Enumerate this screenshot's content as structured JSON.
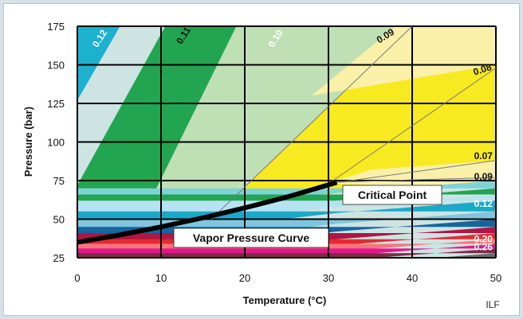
{
  "chart_data": {
    "type": "heatmap",
    "xlabel": "Temperature (°C)",
    "ylabel": "Pressure (bar)",
    "xlim": [
      0,
      50
    ],
    "ylim": [
      25,
      175
    ],
    "xticks": [
      "0",
      "10",
      "20",
      "30",
      "40",
      "50"
    ],
    "yticks": [
      "25",
      "50",
      "75",
      "100",
      "125",
      "150",
      "175"
    ],
    "grid": true,
    "density_labels_upper": [
      {
        "text": "0.12",
        "x": 3,
        "y": 166,
        "color": "#ffffff"
      },
      {
        "text": "0.11",
        "x": 13,
        "y": 168,
        "color": "#111111"
      },
      {
        "text": "0.10",
        "x": 24,
        "y": 166,
        "color": "#ffffff"
      },
      {
        "text": "0.09",
        "x": 37,
        "y": 167,
        "color": "#111111"
      },
      {
        "text": "0.08",
        "x": 48.5,
        "y": 145,
        "color": "#111111"
      },
      {
        "text": "0.07",
        "x": 48.5,
        "y": 89,
        "color": "#111111"
      },
      {
        "text": "0.09",
        "x": 48.5,
        "y": 75.5,
        "color": "#111111"
      }
    ],
    "density_labels_lower": [
      {
        "text": "0.12",
        "x": 48.5,
        "y": 58,
        "color": "#ffffff"
      },
      {
        "text": "0.20",
        "x": 48.5,
        "y": 35,
        "color": "#ffffff"
      },
      {
        "text": "0.26",
        "x": 48.5,
        "y": 30,
        "color": "#ffffff"
      }
    ],
    "vapor_pressure_curve": {
      "x": [
        0,
        5,
        10,
        15,
        20,
        25,
        31
      ],
      "y": [
        35,
        39.7,
        45,
        50.9,
        57.3,
        64.3,
        73.8
      ]
    },
    "annotations": [
      {
        "text": "Critical Point",
        "x": 31,
        "y": 73.8
      },
      {
        "text": "Vapor Pressure Curve",
        "x": 10,
        "y": 45
      }
    ],
    "credit": "ILF"
  },
  "colors": {
    "teal": "#1bb1cf",
    "pale_blue": "#cde4e3",
    "green": "#22a550",
    "light_green": "#bfdfb4",
    "yellow": "#f8ea21",
    "pale_yellow": "#faf0a8",
    "grid": "#000000"
  }
}
